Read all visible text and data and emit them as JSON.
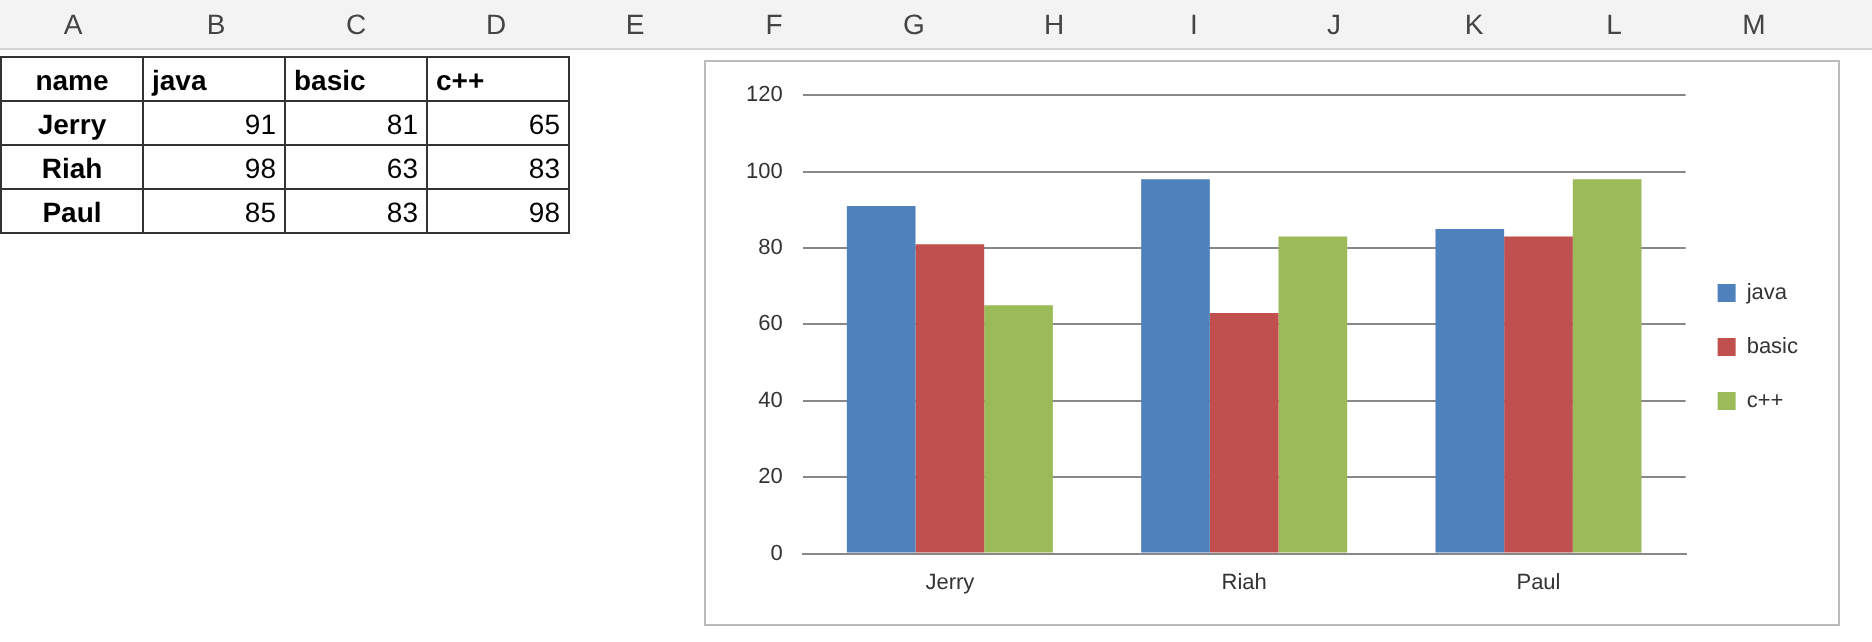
{
  "chart_data": [
    {
      "type": "other",
      "annotations": [
        "A",
        "B",
        "C",
        "D",
        "E",
        "F",
        "G",
        "H",
        "I",
        "J",
        "K",
        "L",
        "M",
        "name",
        "java",
        "basic",
        "c++",
        "Jerry",
        "91",
        "81",
        "65",
        "Riah",
        "98",
        "63",
        "83",
        "Paul",
        "85",
        "83",
        "98"
      ]
    },
    {
      "type": "bar",
      "categories": [
        "Jerry",
        "Riah",
        "Paul"
      ],
      "series": [
        {
          "name": "java",
          "color": "#4f81bd",
          "values": [
            91,
            98,
            85
          ]
        },
        {
          "name": "basic",
          "color": "#c0504d",
          "values": [
            81,
            63,
            83
          ]
        },
        {
          "name": "c++",
          "color": "#9bbb59",
          "values": [
            65,
            83,
            98
          ]
        }
      ],
      "ylim": [
        0,
        120
      ],
      "yticks": [
        0,
        20,
        40,
        60,
        80,
        100,
        120
      ],
      "grid": "y",
      "legend": "right"
    }
  ]
}
